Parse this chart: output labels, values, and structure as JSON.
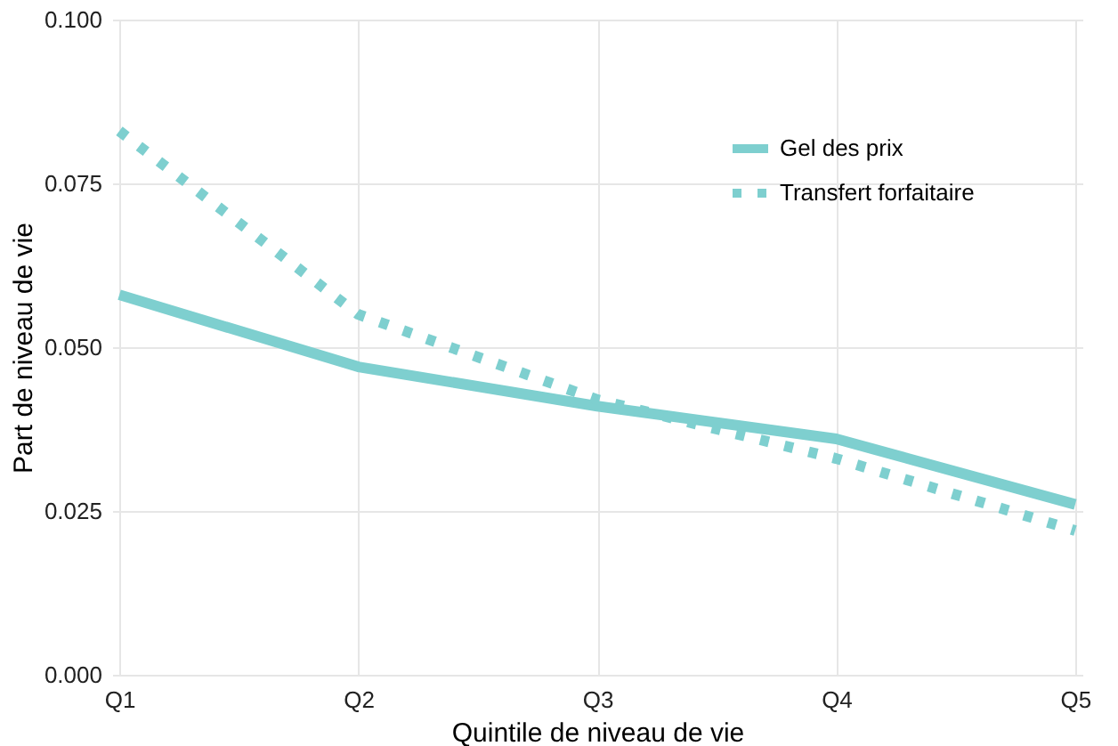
{
  "chart_data": {
    "type": "line",
    "xlabel": "Quintile de niveau de vie",
    "ylabel": "Part de niveau de vie",
    "categories": [
      "Q1",
      "Q2",
      "Q3",
      "Q4",
      "Q5"
    ],
    "series": [
      {
        "name": "Gel des prix",
        "color": "#7ecfcf",
        "line_style": "solid",
        "values": [
          0.058,
          0.047,
          0.041,
          0.036,
          0.026
        ]
      },
      {
        "name": "Transfert forfaitaire",
        "color": "#7ecfcf",
        "line_style": "dotted",
        "values": [
          0.083,
          0.055,
          0.042,
          0.033,
          0.022
        ]
      }
    ],
    "ylim": [
      0,
      0.1
    ],
    "yticks": [
      {
        "value": 0,
        "label": "0.000"
      },
      {
        "value": 0.025,
        "label": "0.025"
      },
      {
        "value": 0.05,
        "label": "0.050"
      },
      {
        "value": 0.075,
        "label": "0.075"
      },
      {
        "value": 0.1,
        "label": "0.100"
      }
    ],
    "grid": true,
    "legend": "top right",
    "marker": "none"
  }
}
